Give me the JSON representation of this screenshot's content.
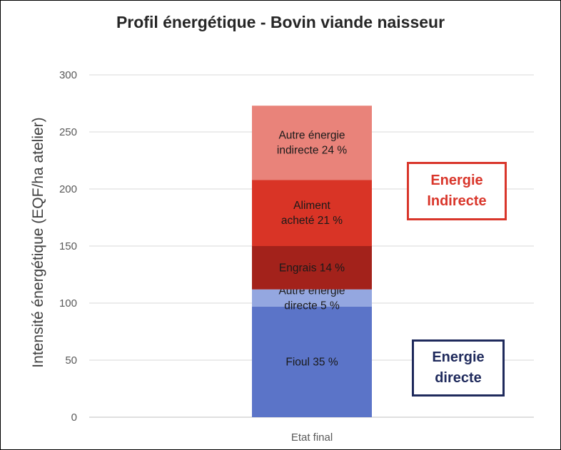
{
  "chart_data": {
    "type": "bar",
    "stacked": true,
    "title": "Profil énergétique - Bovin viande naisseur",
    "ylabel": "Intensité énergétique (EQF/ha atelier)",
    "xlabel": "",
    "categories": [
      "Etat final"
    ],
    "ylim": [
      0,
      300
    ],
    "yticks": [
      "0",
      "50",
      "100",
      "150",
      "200",
      "250",
      "300"
    ],
    "grid": true,
    "series": [
      {
        "label": "Fioul 35 %",
        "values": [
          97
        ],
        "color": "#5b74c8"
      },
      {
        "label": "Autre énergie directe 5 %",
        "values": [
          15
        ],
        "color": "#94a7e0"
      },
      {
        "label": "Engrais 14 %",
        "values": [
          38
        ],
        "color": "#a3221b"
      },
      {
        "label": "Aliment acheté 21 %",
        "values": [
          58
        ],
        "color": "#d93426"
      },
      {
        "label": "Autre énergie indirecte 24 %",
        "values": [
          65
        ],
        "color": "#e9837a"
      }
    ],
    "annotations": [
      {
        "text": "Energie Indirecte",
        "color": "#d9362b"
      },
      {
        "text": "Energie directe",
        "color": "#1f2a5c"
      }
    ]
  }
}
